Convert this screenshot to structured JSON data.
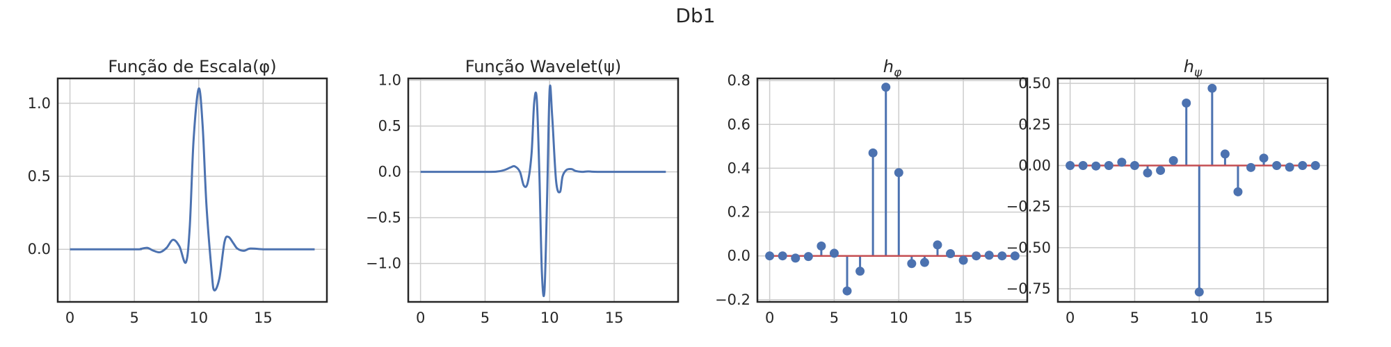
{
  "figure": {
    "title": "Db1",
    "colors": {
      "series": "#4c72b0",
      "baseline": "#c44e52",
      "frame": "#262626",
      "grid": "#cccccc"
    }
  },
  "chart_data": [
    {
      "type": "line",
      "title": "Função de Escala(φ)",
      "xlim": [
        -0.95,
        19.95
      ],
      "ylim": [
        -0.36,
        1.17
      ],
      "xticks": [
        0,
        5,
        10,
        15
      ],
      "xtick_labels": [
        "0",
        "5",
        "10",
        "15"
      ],
      "yticks": [
        0.0,
        0.5,
        1.0
      ],
      "ytick_labels": [
        "0.0",
        "0.5",
        "1.0"
      ],
      "grid": true,
      "series": [
        {
          "x": [
            0,
            5,
            5.5,
            6,
            6.5,
            7,
            7.5,
            8,
            8.5,
            9,
            9.3,
            9.6,
            10,
            10.3,
            10.6,
            11,
            11.2,
            11.6,
            12,
            12.3,
            12.7,
            13,
            13.5,
            14,
            15,
            16,
            19
          ],
          "y": [
            0,
            0,
            0.003,
            0.01,
            -0.01,
            -0.02,
            0.01,
            0.065,
            0.02,
            -0.09,
            0.15,
            0.75,
            1.1,
            0.85,
            0.3,
            -0.15,
            -0.28,
            -0.2,
            0.05,
            0.085,
            0.04,
            0.005,
            -0.01,
            0.005,
            0.0,
            0.0,
            0.0
          ]
        }
      ]
    },
    {
      "type": "line",
      "title": "Função Wavelet(ψ)",
      "xlim": [
        -0.95,
        19.95
      ],
      "ylim": [
        -1.42,
        1.02
      ],
      "xticks": [
        0,
        5,
        10,
        15
      ],
      "xtick_labels": [
        "0",
        "5",
        "10",
        "15"
      ],
      "yticks": [
        -1.0,
        -0.5,
        0.0,
        0.5,
        1.0
      ],
      "ytick_labels": [
        "−1.0",
        "−0.5",
        "0.0",
        "0.5",
        "1.0"
      ],
      "grid": true,
      "series": [
        {
          "x": [
            0,
            5,
            6,
            6.5,
            7,
            7.3,
            7.7,
            8,
            8.3,
            8.6,
            8.8,
            9,
            9.2,
            9.4,
            9.6,
            9.8,
            10,
            10.2,
            10.5,
            10.8,
            11,
            11.3,
            11.7,
            12,
            12.5,
            13,
            14,
            19
          ],
          "y": [
            0,
            0,
            0.005,
            0.02,
            0.05,
            0.06,
            0.0,
            -0.15,
            -0.12,
            0.2,
            0.75,
            0.8,
            0.0,
            -1.1,
            -1.3,
            -0.3,
            0.9,
            0.6,
            -0.1,
            -0.22,
            -0.05,
            0.02,
            0.03,
            0.01,
            0.0,
            0.005,
            0.0,
            0.0
          ]
        }
      ]
    },
    {
      "type": "stem",
      "title": "hφ",
      "title_main": "h",
      "title_sub": "φ",
      "xlim": [
        -0.95,
        19.95
      ],
      "ylim": [
        -0.21,
        0.81
      ],
      "xticks": [
        0,
        5,
        10,
        15
      ],
      "xtick_labels": [
        "0",
        "5",
        "10",
        "15"
      ],
      "yticks": [
        -0.2,
        0.0,
        0.2,
        0.4,
        0.6,
        0.8
      ],
      "ytick_labels": [
        "−0.2",
        "0.0",
        "0.2",
        "0.4",
        "0.6",
        "0.8"
      ],
      "grid": true,
      "series": [
        {
          "x": [
            0,
            1,
            2,
            3,
            4,
            5,
            6,
            7,
            8,
            9,
            10,
            11,
            12,
            13,
            14,
            15,
            16,
            17,
            18,
            19
          ],
          "y": [
            0.0,
            0.0,
            -0.01,
            -0.003,
            0.045,
            0.012,
            -0.16,
            -0.07,
            0.47,
            0.77,
            0.38,
            -0.035,
            -0.03,
            0.05,
            0.01,
            -0.02,
            0.0,
            0.003,
            0.0,
            0.0
          ]
        }
      ]
    },
    {
      "type": "stem",
      "title": "hψ",
      "title_main": "h",
      "title_sub": "ψ",
      "xlim": [
        -0.95,
        19.95
      ],
      "ylim": [
        -0.83,
        0.53
      ],
      "xticks": [
        0,
        5,
        10,
        15
      ],
      "xtick_labels": [
        "0",
        "5",
        "10",
        "15"
      ],
      "yticks": [
        -0.75,
        -0.5,
        -0.25,
        0.0,
        0.25,
        0.5
      ],
      "ytick_labels": [
        "−0.75",
        "−0.50",
        "−0.25",
        "0.00",
        "0.25",
        "0.50"
      ],
      "grid": true,
      "series": [
        {
          "x": [
            0,
            1,
            2,
            3,
            4,
            5,
            6,
            7,
            8,
            9,
            10,
            11,
            12,
            13,
            14,
            15,
            16,
            17,
            18,
            19
          ],
          "y": [
            0.0,
            0.0,
            -0.003,
            0.0,
            0.02,
            0.0,
            -0.045,
            -0.03,
            0.03,
            0.38,
            -0.77,
            0.47,
            0.07,
            -0.16,
            -0.012,
            0.045,
            0.0,
            -0.01,
            0.0,
            0.0
          ]
        }
      ]
    }
  ]
}
